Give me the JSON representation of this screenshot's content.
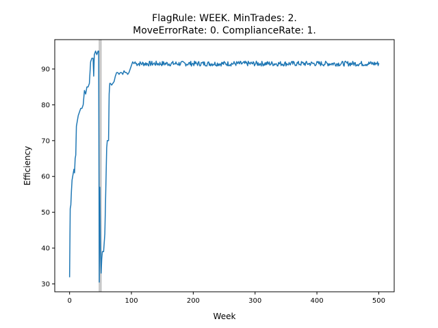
{
  "chart_data": {
    "type": "line",
    "title_line1": "FlagRule: WEEK. MinTrades: 2.",
    "title_line2": "MoveErrorRate: 0. ComplianceRate: 1.",
    "xlabel": "Week",
    "ylabel": "Efficiency",
    "xlim": [
      -24,
      525
    ],
    "ylim": [
      27.8,
      98.2
    ],
    "xticks": [
      0,
      100,
      200,
      300,
      400,
      500
    ],
    "yticks": [
      30,
      40,
      50,
      60,
      70,
      80,
      90
    ],
    "grid": false,
    "shaded_band": {
      "x_start": 47,
      "x_end": 52,
      "color": "#bfbfbf"
    },
    "series": [
      {
        "color": "#1f77b4",
        "anchors": [
          [
            0,
            32
          ],
          [
            1,
            51
          ],
          [
            2,
            52
          ],
          [
            3,
            56
          ],
          [
            4,
            59
          ],
          [
            5,
            60
          ],
          [
            6,
            61
          ],
          [
            7,
            62
          ],
          [
            8,
            61
          ],
          [
            9,
            65
          ],
          [
            10,
            66
          ],
          [
            11,
            74
          ],
          [
            12,
            75
          ],
          [
            14,
            77
          ],
          [
            16,
            78
          ],
          [
            18,
            79
          ],
          [
            20,
            79
          ],
          [
            22,
            80
          ],
          [
            24,
            84
          ],
          [
            26,
            83
          ],
          [
            28,
            85
          ],
          [
            30,
            85
          ],
          [
            32,
            86
          ],
          [
            34,
            92
          ],
          [
            36,
            93
          ],
          [
            38,
            93
          ],
          [
            39,
            88
          ],
          [
            40,
            94
          ],
          [
            42,
            95
          ],
          [
            44,
            94
          ],
          [
            46,
            95
          ],
          [
            47,
            95
          ],
          [
            48,
            30.5
          ],
          [
            49,
            57
          ],
          [
            50,
            40
          ],
          [
            51,
            33
          ],
          [
            52,
            37
          ],
          [
            53,
            39
          ],
          [
            55,
            39
          ],
          [
            57,
            44
          ],
          [
            59,
            60
          ],
          [
            60,
            68
          ],
          [
            61,
            70
          ],
          [
            63,
            70
          ],
          [
            64,
            83
          ],
          [
            65,
            86
          ],
          [
            66,
            86
          ],
          [
            68,
            85.5
          ],
          [
            70,
            86
          ],
          [
            72,
            86.5
          ],
          [
            74,
            88
          ],
          [
            76,
            89
          ],
          [
            78,
            89
          ],
          [
            80,
            88.5
          ],
          [
            82,
            89
          ],
          [
            84,
            89
          ],
          [
            86,
            88.5
          ],
          [
            88,
            89.5
          ],
          [
            90,
            89
          ],
          [
            92,
            89
          ],
          [
            94,
            88.5
          ],
          [
            96,
            89
          ],
          [
            98,
            90
          ],
          [
            100,
            91
          ],
          [
            102,
            92
          ],
          [
            104,
            91.5
          ],
          [
            106,
            92
          ]
        ],
        "steady_state": {
          "x_start": 107,
          "x_end": 500,
          "mean": 91.5,
          "amplitude": 0.7
        }
      }
    ]
  }
}
